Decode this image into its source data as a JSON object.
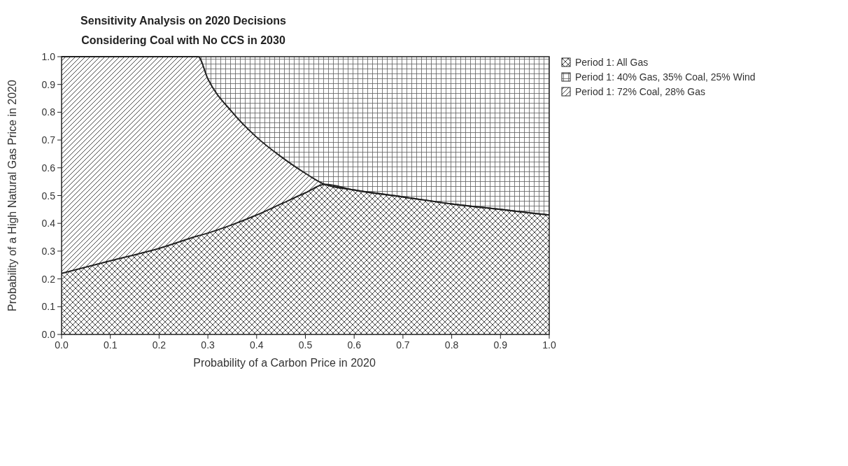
{
  "chart_data": {
    "type": "area",
    "stacked": true,
    "title": "Sensitivity Analysis on 2020 Decisions",
    "subtitle": "Considering Coal with No CCS in 2030",
    "xlabel": "Probability of a Carbon Price in 2020",
    "ylabel": "Probability of a High Natural Gas Price in 2020",
    "x": [
      0,
      0.1,
      0.2,
      0.28,
      0.3,
      0.35,
      0.4,
      0.45,
      0.5,
      0.54,
      0.6,
      0.7,
      0.8,
      0.9,
      1.0
    ],
    "series": [
      {
        "name": "Period 1: All Gas",
        "color": "#333333",
        "values": [
          0.22,
          0.265,
          0.31,
          0.355,
          0.365,
          0.395,
          0.43,
          0.47,
          0.51,
          0.54,
          0.52,
          0.495,
          0.47,
          0.45,
          0.43
        ]
      },
      {
        "name": "Period 1: 72% Coal, 28% Gas",
        "color": "#333333",
        "values": [
          0.78,
          0.735,
          0.69,
          0.645,
          0.555,
          0.405,
          0.28,
          0.17,
          0.07,
          0,
          0,
          0,
          0,
          0,
          0
        ]
      },
      {
        "name": "Period 1: 40% Gas, 35% Coal,  25% Wind",
        "color": "#333333",
        "values": [
          0,
          0,
          0,
          0,
          0.08,
          0.2,
          0.29,
          0.36,
          0.42,
          0.46,
          0.48,
          0.505,
          0.53,
          0.55,
          0.57
        ]
      }
    ],
    "xlim": [
      0,
      1
    ],
    "ylim": [
      0,
      1
    ],
    "xticks": [
      {
        "value": 0,
        "label": "0.0"
      },
      0.1,
      0.2,
      0.3,
      0.4,
      0.5,
      0.6,
      0.7,
      0.8,
      0.9,
      {
        "value": 1,
        "label": "1.0"
      }
    ],
    "yticks": [
      {
        "value": 0,
        "label": "0.0"
      },
      0.1,
      0.2,
      0.3,
      0.4,
      0.5,
      0.6,
      0.7,
      0.8,
      0.9,
      {
        "value": 1,
        "label": "1.0"
      }
    ],
    "grid": false,
    "legend": "top right"
  }
}
